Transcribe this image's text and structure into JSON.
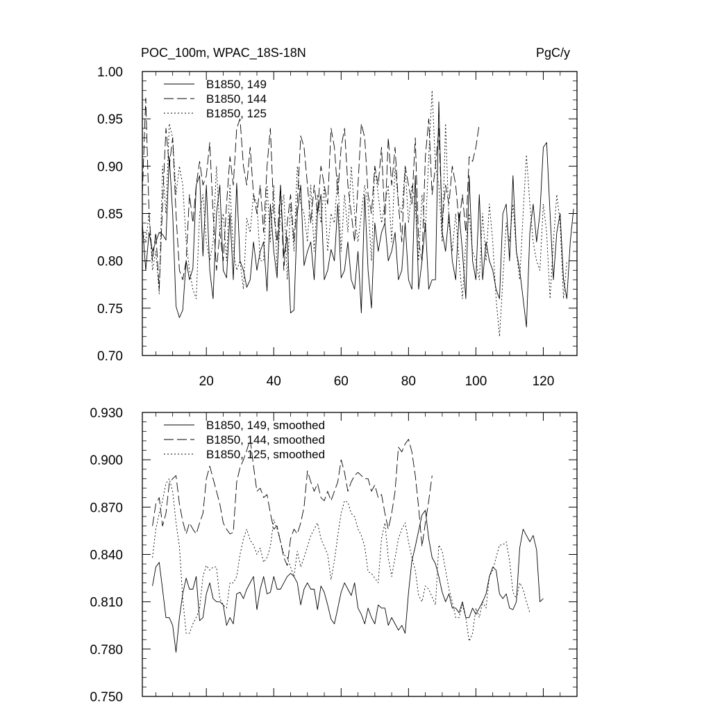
{
  "header": {
    "left_title": "POC_100m, WPAC_18S-18N",
    "right_title": "PgC/y"
  },
  "chart_data": [
    {
      "type": "line",
      "xlim": [
        1,
        130
      ],
      "ylim": [
        0.7,
        1.0
      ],
      "yticks": [
        "0.70",
        "0.75",
        "0.80",
        "0.85",
        "0.90",
        "0.95",
        "1.00"
      ],
      "xticks": [
        "20",
        "40",
        "60",
        "80",
        "100",
        "120"
      ],
      "legend_position": "top-left",
      "series": [
        {
          "name": "B1850, 149",
          "style": "solid",
          "x_start": 1,
          "values": [
            0.84,
            0.79,
            0.83,
            0.81,
            0.82,
            0.83,
            0.828,
            0.822,
            0.91,
            0.85,
            0.752,
            0.74,
            0.748,
            0.8,
            0.78,
            0.792,
            0.88,
            0.89,
            0.805,
            0.88,
            0.79,
            0.76,
            0.85,
            0.88,
            0.79,
            0.782,
            0.85,
            0.78,
            0.882,
            0.8,
            0.79,
            0.772,
            0.78,
            0.82,
            0.79,
            0.81,
            0.82,
            0.768,
            0.86,
            0.81,
            0.782,
            0.88,
            0.805,
            0.825,
            0.745,
            0.748,
            0.85,
            0.88,
            0.795,
            0.81,
            0.82,
            0.78,
            0.85,
            0.87,
            0.78,
            0.79,
            0.812,
            0.8,
            0.86,
            0.782,
            0.79,
            0.82,
            0.78,
            0.77,
            0.81,
            0.745,
            0.87,
            0.79,
            0.75,
            0.84,
            0.81,
            0.83,
            0.84,
            0.8,
            0.81,
            0.83,
            0.78,
            0.79,
            0.84,
            0.78,
            0.77,
            0.89,
            0.77,
            0.8,
            0.84,
            0.77,
            0.78,
            0.78,
            0.968,
            0.83,
            0.81,
            0.85,
            0.8,
            0.78,
            0.85,
            0.81,
            0.76,
            0.89,
            0.8,
            0.78,
            0.87,
            0.78,
            0.82,
            0.8,
            0.79,
            0.77,
            0.76,
            0.85,
            0.86,
            0.8,
            0.89,
            0.81,
            0.79,
            0.76,
            0.73,
            0.83,
            0.86,
            0.82,
            0.85,
            0.92,
            0.925,
            0.85,
            0.78,
            0.83,
            0.85,
            0.78,
            0.76,
            0.82,
            0.855
          ]
        },
        {
          "name": "B1850, 144",
          "style": "dashed",
          "x_start": 1,
          "values": [
            0.87,
            0.972,
            0.85,
            0.8,
            0.83,
            0.77,
            0.86,
            0.94,
            0.9,
            0.93,
            0.85,
            0.79,
            0.78,
            0.8,
            0.87,
            0.84,
            0.88,
            0.905,
            0.88,
            0.89,
            0.925,
            0.85,
            0.79,
            0.83,
            0.8,
            0.86,
            0.91,
            0.88,
            0.94,
            0.95,
            0.9,
            0.88,
            0.92,
            0.87,
            0.85,
            0.88,
            0.83,
            0.9,
            0.94,
            0.85,
            0.82,
            0.88,
            0.79,
            0.84,
            0.87,
            0.82,
            0.86,
            0.932,
            0.92,
            0.88,
            0.84,
            0.88,
            0.85,
            0.9,
            0.88,
            0.86,
            0.94,
            0.92,
            0.87,
            0.92,
            0.94,
            0.88,
            0.85,
            0.82,
            0.88,
            0.945,
            0.93,
            0.87,
            0.85,
            0.9,
            0.88,
            0.92,
            0.84,
            0.93,
            0.88,
            0.92,
            0.86,
            0.82,
            0.9,
            0.88,
            0.86,
            0.93,
            0.82,
            0.8,
            0.91,
            0.95,
            0.87,
            0.9,
            0.94,
            0.84,
            0.88,
            0.86,
            0.9,
            0.88,
            0.84,
            0.87,
            0.83,
            0.91,
            0.905,
            0.92,
            0.945
          ]
        },
        {
          "name": "B1850, 125",
          "style": "dotted",
          "x_start": 1,
          "values": [
            0.83,
            0.82,
            0.85,
            0.79,
            0.81,
            0.765,
            0.9,
            0.85,
            0.945,
            0.93,
            0.87,
            0.9,
            0.88,
            0.82,
            0.79,
            0.77,
            0.76,
            0.85,
            0.87,
            0.82,
            0.8,
            0.82,
            0.9,
            0.83,
            0.85,
            0.8,
            0.88,
            0.81,
            0.79,
            0.8,
            0.77,
            0.845,
            0.83,
            0.87,
            0.86,
            0.8,
            0.8,
            0.88,
            0.82,
            0.88,
            0.79,
            0.85,
            0.87,
            0.78,
            0.86,
            0.81,
            0.9,
            0.86,
            0.85,
            0.82,
            0.88,
            0.81,
            0.87,
            0.84,
            0.88,
            0.81,
            0.85,
            0.84,
            0.89,
            0.81,
            0.87,
            0.83,
            0.9,
            0.85,
            0.82,
            0.85,
            0.88,
            0.86,
            0.8,
            0.9,
            0.87,
            0.84,
            0.86,
            0.88,
            0.82,
            0.9,
            0.86,
            0.85,
            0.9,
            0.84,
            0.88,
            0.86,
            0.8,
            0.87,
            0.83,
            0.91,
            0.98,
            0.9,
            0.88,
            0.82,
            0.945,
            0.84,
            0.81,
            0.85,
            0.8,
            0.76,
            0.82,
            0.85,
            0.81,
            0.8,
            0.78,
            0.85,
            0.8,
            0.86,
            0.82,
            0.76,
            0.72,
            0.78,
            0.84,
            0.82,
            0.86,
            0.81,
            0.78,
            0.85,
            0.912,
            0.86,
            0.82,
            0.8,
            0.79,
            0.86,
            0.83,
            0.76,
            0.82,
            0.87,
            0.84,
            0.76,
            0.8
          ]
        }
      ]
    },
    {
      "type": "line",
      "xlim": [
        1,
        130
      ],
      "ylim": [
        0.75,
        0.93
      ],
      "yticks": [
        "0.750",
        "0.780",
        "0.810",
        "0.840",
        "0.870",
        "0.900",
        "0.930"
      ],
      "xticks": [],
      "legend_position": "top-left",
      "series": [
        {
          "name": "B1850, 149, smoothed",
          "style": "solid",
          "x_start": 4,
          "values": [
            0.82,
            0.832,
            0.835,
            0.818,
            0.8,
            0.8,
            0.795,
            0.778,
            0.8,
            0.815,
            0.825,
            0.818,
            0.818,
            0.826,
            0.798,
            0.8,
            0.815,
            0.822,
            0.812,
            0.81,
            0.81,
            0.808,
            0.795,
            0.8,
            0.796,
            0.815,
            0.816,
            0.812,
            0.818,
            0.822,
            0.826,
            0.805,
            0.818,
            0.826,
            0.815,
            0.816,
            0.826,
            0.818,
            0.818,
            0.822,
            0.826,
            0.828,
            0.826,
            0.822,
            0.808,
            0.818,
            0.822,
            0.818,
            0.818,
            0.805,
            0.82,
            0.816,
            0.808,
            0.799,
            0.796,
            0.806,
            0.816,
            0.822,
            0.818,
            0.814,
            0.822,
            0.806,
            0.802,
            0.796,
            0.806,
            0.8,
            0.796,
            0.808,
            0.806,
            0.806,
            0.795,
            0.8,
            0.796,
            0.792,
            0.795,
            0.79,
            0.816,
            0.836,
            0.845,
            0.855,
            0.865,
            0.868,
            0.85,
            0.838,
            0.834,
            0.826,
            0.816,
            0.81,
            0.815,
            0.806,
            0.806,
            0.803,
            0.81,
            0.8,
            0.8,
            0.806,
            0.802,
            0.806,
            0.81,
            0.815,
            0.826,
            0.832,
            0.83,
            0.815,
            0.812,
            0.815,
            0.806,
            0.805,
            0.81,
            0.844,
            0.856,
            0.852,
            0.848,
            0.852,
            0.843,
            0.81,
            0.812
          ]
        },
        {
          "name": "B1850, 144, smoothed",
          "style": "dashed",
          "x_start": 4,
          "values": [
            0.858,
            0.872,
            0.876,
            0.858,
            0.866,
            0.885,
            0.888,
            0.89,
            0.872,
            0.861,
            0.853,
            0.86,
            0.856,
            0.853,
            0.86,
            0.866,
            0.888,
            0.896,
            0.888,
            0.88,
            0.872,
            0.86,
            0.856,
            0.853,
            0.854,
            0.886,
            0.895,
            0.9,
            0.906,
            0.913,
            0.896,
            0.88,
            0.882,
            0.876,
            0.878,
            0.866,
            0.856,
            0.858,
            0.848,
            0.838,
            0.833,
            0.85,
            0.856,
            0.853,
            0.86,
            0.87,
            0.893,
            0.886,
            0.88,
            0.885,
            0.876,
            0.874,
            0.88,
            0.874,
            0.88,
            0.886,
            0.9,
            0.892,
            0.88,
            0.886,
            0.89,
            0.892,
            0.89,
            0.888,
            0.888,
            0.88,
            0.884,
            0.876,
            0.878,
            0.866,
            0.856,
            0.866,
            0.88,
            0.908,
            0.905,
            0.91,
            0.913,
            0.905,
            0.89,
            0.87,
            0.845,
            0.86,
            0.874,
            0.89
          ]
        },
        {
          "name": "B1850, 125, smoothed",
          "style": "dotted",
          "x_start": 4,
          "values": [
            0.838,
            0.856,
            0.866,
            0.874,
            0.885,
            0.888,
            0.88,
            0.86,
            0.845,
            0.812,
            0.79,
            0.79,
            0.796,
            0.8,
            0.806,
            0.826,
            0.833,
            0.83,
            0.832,
            0.832,
            0.812,
            0.808,
            0.806,
            0.822,
            0.822,
            0.826,
            0.84,
            0.85,
            0.856,
            0.849,
            0.846,
            0.84,
            0.844,
            0.835,
            0.838,
            0.845,
            0.862,
            0.856,
            0.848,
            0.84,
            0.838,
            0.832,
            0.826,
            0.842,
            0.832,
            0.838,
            0.845,
            0.852,
            0.856,
            0.86,
            0.85,
            0.845,
            0.84,
            0.824,
            0.836,
            0.852,
            0.866,
            0.874,
            0.873,
            0.866,
            0.864,
            0.856,
            0.852,
            0.845,
            0.829,
            0.828,
            0.825,
            0.822,
            0.85,
            0.86,
            0.838,
            0.826,
            0.838,
            0.85,
            0.856,
            0.86,
            0.848,
            0.838,
            0.83,
            0.814,
            0.81,
            0.82,
            0.818,
            0.813,
            0.808,
            0.846,
            0.842,
            0.83,
            0.818,
            0.81,
            0.8,
            0.8,
            0.808,
            0.8,
            0.785,
            0.79,
            0.806,
            0.8,
            0.81,
            0.806,
            0.826,
            0.83,
            0.838,
            0.846,
            0.846,
            0.848,
            0.836,
            0.816,
            0.812,
            0.822,
            0.818,
            0.81,
            0.803
          ]
        }
      ]
    }
  ]
}
